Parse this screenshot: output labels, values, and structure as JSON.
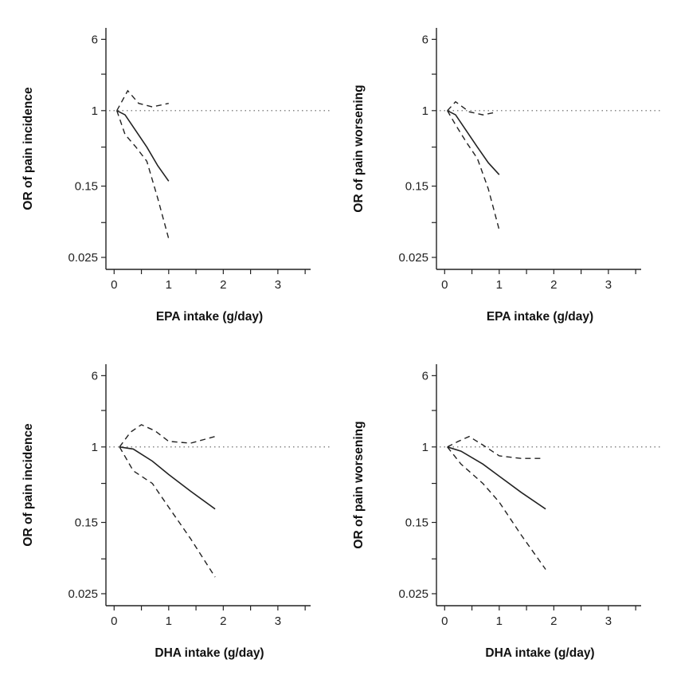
{
  "chart_data": [
    {
      "type": "line",
      "xlabel": "EPA intake (g/day)",
      "ylabel": "OR of pain incidence",
      "yscale": "log",
      "xlim": [
        -0.15,
        3.6
      ],
      "ylim": [
        0.0185,
        8.0
      ],
      "x_ticks": [
        0,
        1,
        2,
        3
      ],
      "x_minor_ticks": [
        0.5,
        1.5,
        2.5,
        3.5
      ],
      "y_ticks": [
        0.025,
        0.15,
        1,
        6
      ],
      "y_tick_labels": [
        "0.025",
        "0.15",
        "1",
        "6"
      ],
      "y_minor_ticks": [
        0.06,
        0.4,
        2.5
      ],
      "reference_line": 1,
      "series": [
        {
          "line_style": "solid",
          "x": [
            0.05,
            0.2,
            0.4,
            0.6,
            0.8,
            1.0
          ],
          "y": [
            1.0,
            0.9,
            0.6,
            0.4,
            0.25,
            0.17
          ]
        },
        {
          "line_style": "dashed",
          "x": [
            0.05,
            0.25,
            0.45,
            0.7,
            1.0
          ],
          "y": [
            1.0,
            1.65,
            1.2,
            1.1,
            1.2
          ]
        },
        {
          "line_style": "dashed",
          "x": [
            0.05,
            0.2,
            0.4,
            0.6,
            0.8,
            1.0
          ],
          "y": [
            1.0,
            0.55,
            0.4,
            0.28,
            0.11,
            0.04
          ]
        }
      ]
    },
    {
      "type": "line",
      "xlabel": "EPA intake (g/day)",
      "ylabel": "OR of pain worsening",
      "yscale": "log",
      "xlim": [
        -0.15,
        3.6
      ],
      "ylim": [
        0.0185,
        8.0
      ],
      "x_ticks": [
        0,
        1,
        2,
        3
      ],
      "x_minor_ticks": [
        0.5,
        1.5,
        2.5,
        3.5
      ],
      "y_ticks": [
        0.025,
        0.15,
        1,
        6
      ],
      "y_tick_labels": [
        "0.025",
        "0.15",
        "1",
        "6"
      ],
      "y_minor_ticks": [
        0.06,
        0.4,
        2.5
      ],
      "reference_line": 1,
      "series": [
        {
          "line_style": "solid",
          "x": [
            0.05,
            0.2,
            0.4,
            0.6,
            0.8,
            1.0
          ],
          "y": [
            1.0,
            0.9,
            0.6,
            0.4,
            0.27,
            0.2
          ]
        },
        {
          "line_style": "dashed",
          "x": [
            0.05,
            0.2,
            0.45,
            0.7,
            0.9
          ],
          "y": [
            1.0,
            1.25,
            0.97,
            0.9,
            0.95
          ]
        },
        {
          "line_style": "dashed",
          "x": [
            0.05,
            0.2,
            0.4,
            0.6,
            0.8,
            1.0
          ],
          "y": [
            1.0,
            0.7,
            0.45,
            0.3,
            0.14,
            0.05
          ]
        }
      ]
    },
    {
      "type": "line",
      "xlabel": "DHA intake (g/day)",
      "ylabel": "OR of pain incidence",
      "yscale": "log",
      "xlim": [
        -0.15,
        3.6
      ],
      "ylim": [
        0.0185,
        8.0
      ],
      "x_ticks": [
        0,
        1,
        2,
        3
      ],
      "x_minor_ticks": [
        0.5,
        1.5,
        2.5,
        3.5
      ],
      "y_ticks": [
        0.025,
        0.15,
        1,
        6
      ],
      "y_tick_labels": [
        "0.025",
        "0.15",
        "1",
        "6"
      ],
      "y_minor_ticks": [
        0.06,
        0.4,
        2.5
      ],
      "reference_line": 1,
      "series": [
        {
          "line_style": "solid",
          "x": [
            0.1,
            0.35,
            0.7,
            1.0,
            1.4,
            1.85
          ],
          "y": [
            1.0,
            0.95,
            0.7,
            0.5,
            0.33,
            0.21
          ]
        },
        {
          "line_style": "dashed",
          "x": [
            0.1,
            0.3,
            0.5,
            0.75,
            1.0,
            1.4,
            1.85
          ],
          "y": [
            1.0,
            1.45,
            1.75,
            1.5,
            1.15,
            1.1,
            1.3
          ]
        },
        {
          "line_style": "dashed",
          "x": [
            0.1,
            0.35,
            0.7,
            1.0,
            1.4,
            1.85
          ],
          "y": [
            1.0,
            0.55,
            0.4,
            0.22,
            0.1,
            0.038
          ]
        }
      ]
    },
    {
      "type": "line",
      "xlabel": "DHA intake (g/day)",
      "ylabel": "OR of pain worsening",
      "yscale": "log",
      "xlim": [
        -0.15,
        3.6
      ],
      "ylim": [
        0.0185,
        8.0
      ],
      "x_ticks": [
        0,
        1,
        2,
        3
      ],
      "x_minor_ticks": [
        0.5,
        1.5,
        2.5,
        3.5
      ],
      "y_ticks": [
        0.025,
        0.15,
        1,
        6
      ],
      "y_tick_labels": [
        "0.025",
        "0.15",
        "1",
        "6"
      ],
      "y_minor_ticks": [
        0.06,
        0.4,
        2.5
      ],
      "reference_line": 1,
      "series": [
        {
          "line_style": "solid",
          "x": [
            0.05,
            0.3,
            0.7,
            1.0,
            1.4,
            1.85
          ],
          "y": [
            1.0,
            0.9,
            0.65,
            0.48,
            0.32,
            0.21
          ]
        },
        {
          "line_style": "dashed",
          "x": [
            0.05,
            0.25,
            0.45,
            0.7,
            1.0,
            1.4,
            1.8
          ],
          "y": [
            1.0,
            1.15,
            1.3,
            1.05,
            0.8,
            0.75,
            0.75
          ]
        },
        {
          "line_style": "dashed",
          "x": [
            0.05,
            0.3,
            0.7,
            1.0,
            1.4,
            1.85
          ],
          "y": [
            1.0,
            0.65,
            0.4,
            0.25,
            0.11,
            0.046
          ]
        }
      ]
    }
  ]
}
